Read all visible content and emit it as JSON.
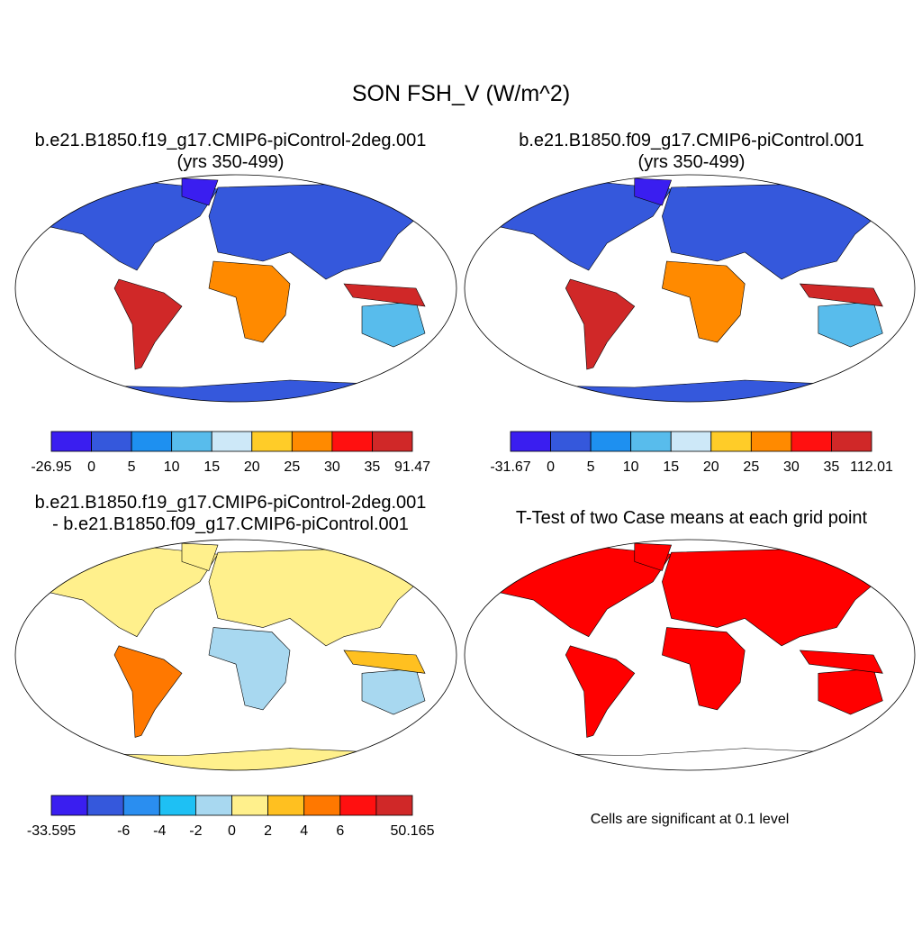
{
  "title": "SON FSH_V (W/m^2)",
  "panels": [
    {
      "title": [
        "b.e21.B1850.f19_g17.CMIP6-piControl-2deg.001",
        "(yrs 350-499)"
      ],
      "colorbar": {
        "colors": [
          "#3a1ef0",
          "#3558dc",
          "#1e90f0",
          "#58bcec",
          "#cde8f8",
          "#ffcc28",
          "#ff8a00",
          "#ff1010",
          "#d02828"
        ],
        "labels": [
          "-26.95",
          "0",
          "5",
          "10",
          "15",
          "20",
          "25",
          "30",
          "35",
          "91.47"
        ]
      }
    },
    {
      "title": [
        "b.e21.B1850.f09_g17.CMIP6-piControl.001",
        "(yrs 350-499)"
      ],
      "colorbar": {
        "colors": [
          "#3a1ef0",
          "#3558dc",
          "#1e90f0",
          "#58bcec",
          "#cde8f8",
          "#ffcc28",
          "#ff8a00",
          "#ff1010",
          "#d02828"
        ],
        "labels": [
          "-31.67",
          "0",
          "5",
          "10",
          "15",
          "20",
          "25",
          "30",
          "35",
          "112.01"
        ]
      }
    },
    {
      "title": [
        "b.e21.B1850.f19_g17.CMIP6-piControl-2deg.001",
        "- b.e21.B1850.f09_g17.CMIP6-piControl.001"
      ],
      "colorbar": {
        "colors": [
          "#3a1ef0",
          "#3558dc",
          "#2a8ef0",
          "#1ec0f4",
          "#a8d8f0",
          "#fff08c",
          "#ffc020",
          "#ff7800",
          "#ff1010",
          "#d02828"
        ],
        "labels": [
          "-33.595",
          null,
          "-6",
          "-4",
          "-2",
          "0",
          "2",
          "4",
          "6",
          null,
          "50.165"
        ]
      }
    },
    {
      "title": [
        "T-Test of two Case means at each grid point"
      ],
      "note": "Cells are significant at 0.1 level"
    }
  ]
}
